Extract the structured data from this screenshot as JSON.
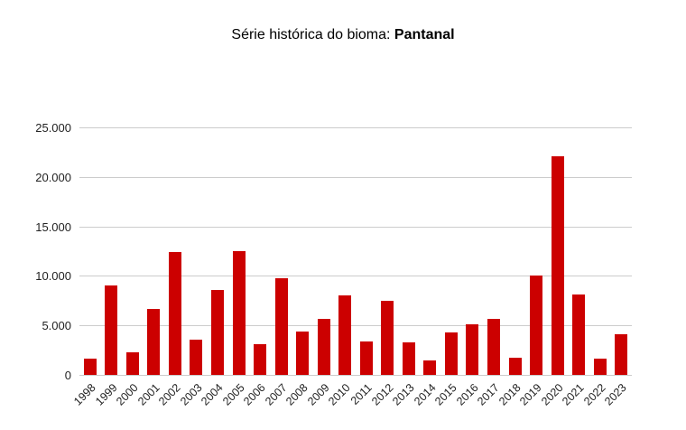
{
  "header": {
    "title_prefix": "Série histórica do bioma: ",
    "title_biome": "Pantanal"
  },
  "chart_data": {
    "type": "bar",
    "title": "Série histórica do bioma: Pantanal",
    "categories": [
      "1998",
      "1999",
      "2000",
      "2001",
      "2002",
      "2003",
      "2004",
      "2005",
      "2006",
      "2007",
      "2008",
      "2009",
      "2010",
      "2011",
      "2012",
      "2013",
      "2014",
      "2015",
      "2016",
      "2017",
      "2018",
      "2019",
      "2020",
      "2021",
      "2022",
      "2023"
    ],
    "values": [
      1600,
      9000,
      2300,
      6700,
      12400,
      3600,
      8600,
      12500,
      3100,
      9800,
      4400,
      5700,
      8000,
      3400,
      7500,
      3300,
      1500,
      4300,
      5100,
      5700,
      1700,
      10000,
      22100,
      8100,
      1600,
      4100
    ],
    "xlabel": "",
    "ylabel": "",
    "ylim": [
      0,
      25000
    ],
    "ytick_interval": 5000,
    "ytick_labels": [
      "0",
      "5.000",
      "10.000",
      "15.000",
      "20.000",
      "25.000"
    ],
    "bar_color": "#cc0000",
    "grid": true,
    "gridline_color": "#cccccc",
    "legend": "none",
    "x_label_rotation": -45
  }
}
